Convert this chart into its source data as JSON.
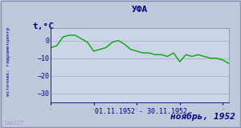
{
  "title": "УФА",
  "ylabel": "t,°C",
  "xlabel": "01.11.1952 - 30.11.1952",
  "bottom_label": "ноябрь, 1952",
  "source_label": "источник: гидрометцентр",
  "watermark": "lab127",
  "ylim": [
    -35,
    7
  ],
  "yticks": [
    0,
    -10,
    -20,
    -30
  ],
  "line_color": "#00aa00",
  "plot_bg_color": "#ccd4e8",
  "outer_bg": "#c0c8dc",
  "grid_color": "#aab2c8",
  "border_color": "#8890b0",
  "text_color": "#000080",
  "days": [
    1,
    2,
    3,
    4,
    5,
    6,
    7,
    8,
    9,
    10,
    11,
    12,
    13,
    14,
    15,
    16,
    17,
    18,
    19,
    20,
    21,
    22,
    23,
    24,
    25,
    26,
    27,
    28,
    29,
    30
  ],
  "temps": [
    -4,
    -3,
    2,
    3,
    3,
    1,
    -1,
    -6,
    -5,
    -4,
    -1,
    0,
    -2,
    -5,
    -6,
    -7,
    -7,
    -8,
    -8,
    -9,
    -7,
    -12,
    -8,
    -9,
    -8,
    -9,
    -10,
    -10,
    -11,
    -13
  ]
}
